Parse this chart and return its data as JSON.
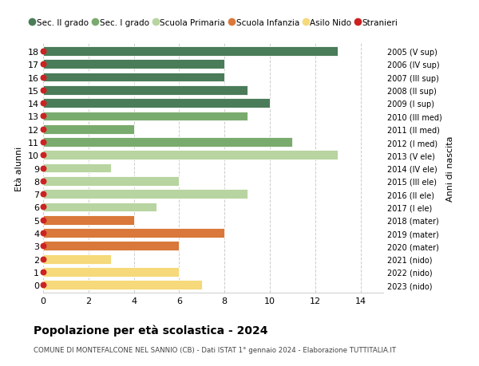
{
  "ages": [
    18,
    17,
    16,
    15,
    14,
    13,
    12,
    11,
    10,
    9,
    8,
    7,
    6,
    5,
    4,
    3,
    2,
    1,
    0
  ],
  "years_labels": [
    "2005 (V sup)",
    "2006 (IV sup)",
    "2007 (III sup)",
    "2008 (II sup)",
    "2009 (I sup)",
    "2010 (III med)",
    "2011 (II med)",
    "2012 (I med)",
    "2013 (V ele)",
    "2014 (IV ele)",
    "2015 (III ele)",
    "2016 (II ele)",
    "2017 (I ele)",
    "2018 (mater)",
    "2019 (mater)",
    "2020 (mater)",
    "2021 (nido)",
    "2022 (nido)",
    "2023 (nido)"
  ],
  "values": [
    13,
    8,
    8,
    9,
    10,
    9,
    4,
    11,
    13,
    3,
    6,
    9,
    5,
    4,
    8,
    6,
    3,
    6,
    7
  ],
  "bar_colors": [
    "#4a7c59",
    "#4a7c59",
    "#4a7c59",
    "#4a7c59",
    "#4a7c59",
    "#7aab6e",
    "#7aab6e",
    "#7aab6e",
    "#b8d4a0",
    "#b8d4a0",
    "#b8d4a0",
    "#b8d4a0",
    "#b8d4a0",
    "#d9783a",
    "#d9783a",
    "#d9783a",
    "#f5d97a",
    "#f5d97a",
    "#f5d97a"
  ],
  "legend_items": [
    {
      "label": "Sec. II grado",
      "color": "#4a7c59"
    },
    {
      "label": "Sec. I grado",
      "color": "#7aab6e"
    },
    {
      "label": "Scuola Primaria",
      "color": "#b8d4a0"
    },
    {
      "label": "Scuola Infanzia",
      "color": "#d9783a"
    },
    {
      "label": "Asilo Nido",
      "color": "#f5d97a"
    },
    {
      "label": "Stranieri",
      "color": "#cc2222"
    }
  ],
  "ylabel_left": "Età alunni",
  "ylabel_right": "Anni di nascita",
  "title": "Popolazione per età scolastica - 2024",
  "subtitle": "COMUNE DI MONTEFALCONE NEL SANNIO (CB) - Dati ISTAT 1° gennaio 2024 - Elaborazione TUTTITALIA.IT",
  "xlim": [
    0,
    15
  ],
  "xticks": [
    0,
    2,
    4,
    6,
    8,
    10,
    12,
    14
  ],
  "dot_color": "#cc2222",
  "dot_size": 22,
  "background_color": "#ffffff",
  "grid_color": "#cccccc",
  "bar_height": 0.72
}
